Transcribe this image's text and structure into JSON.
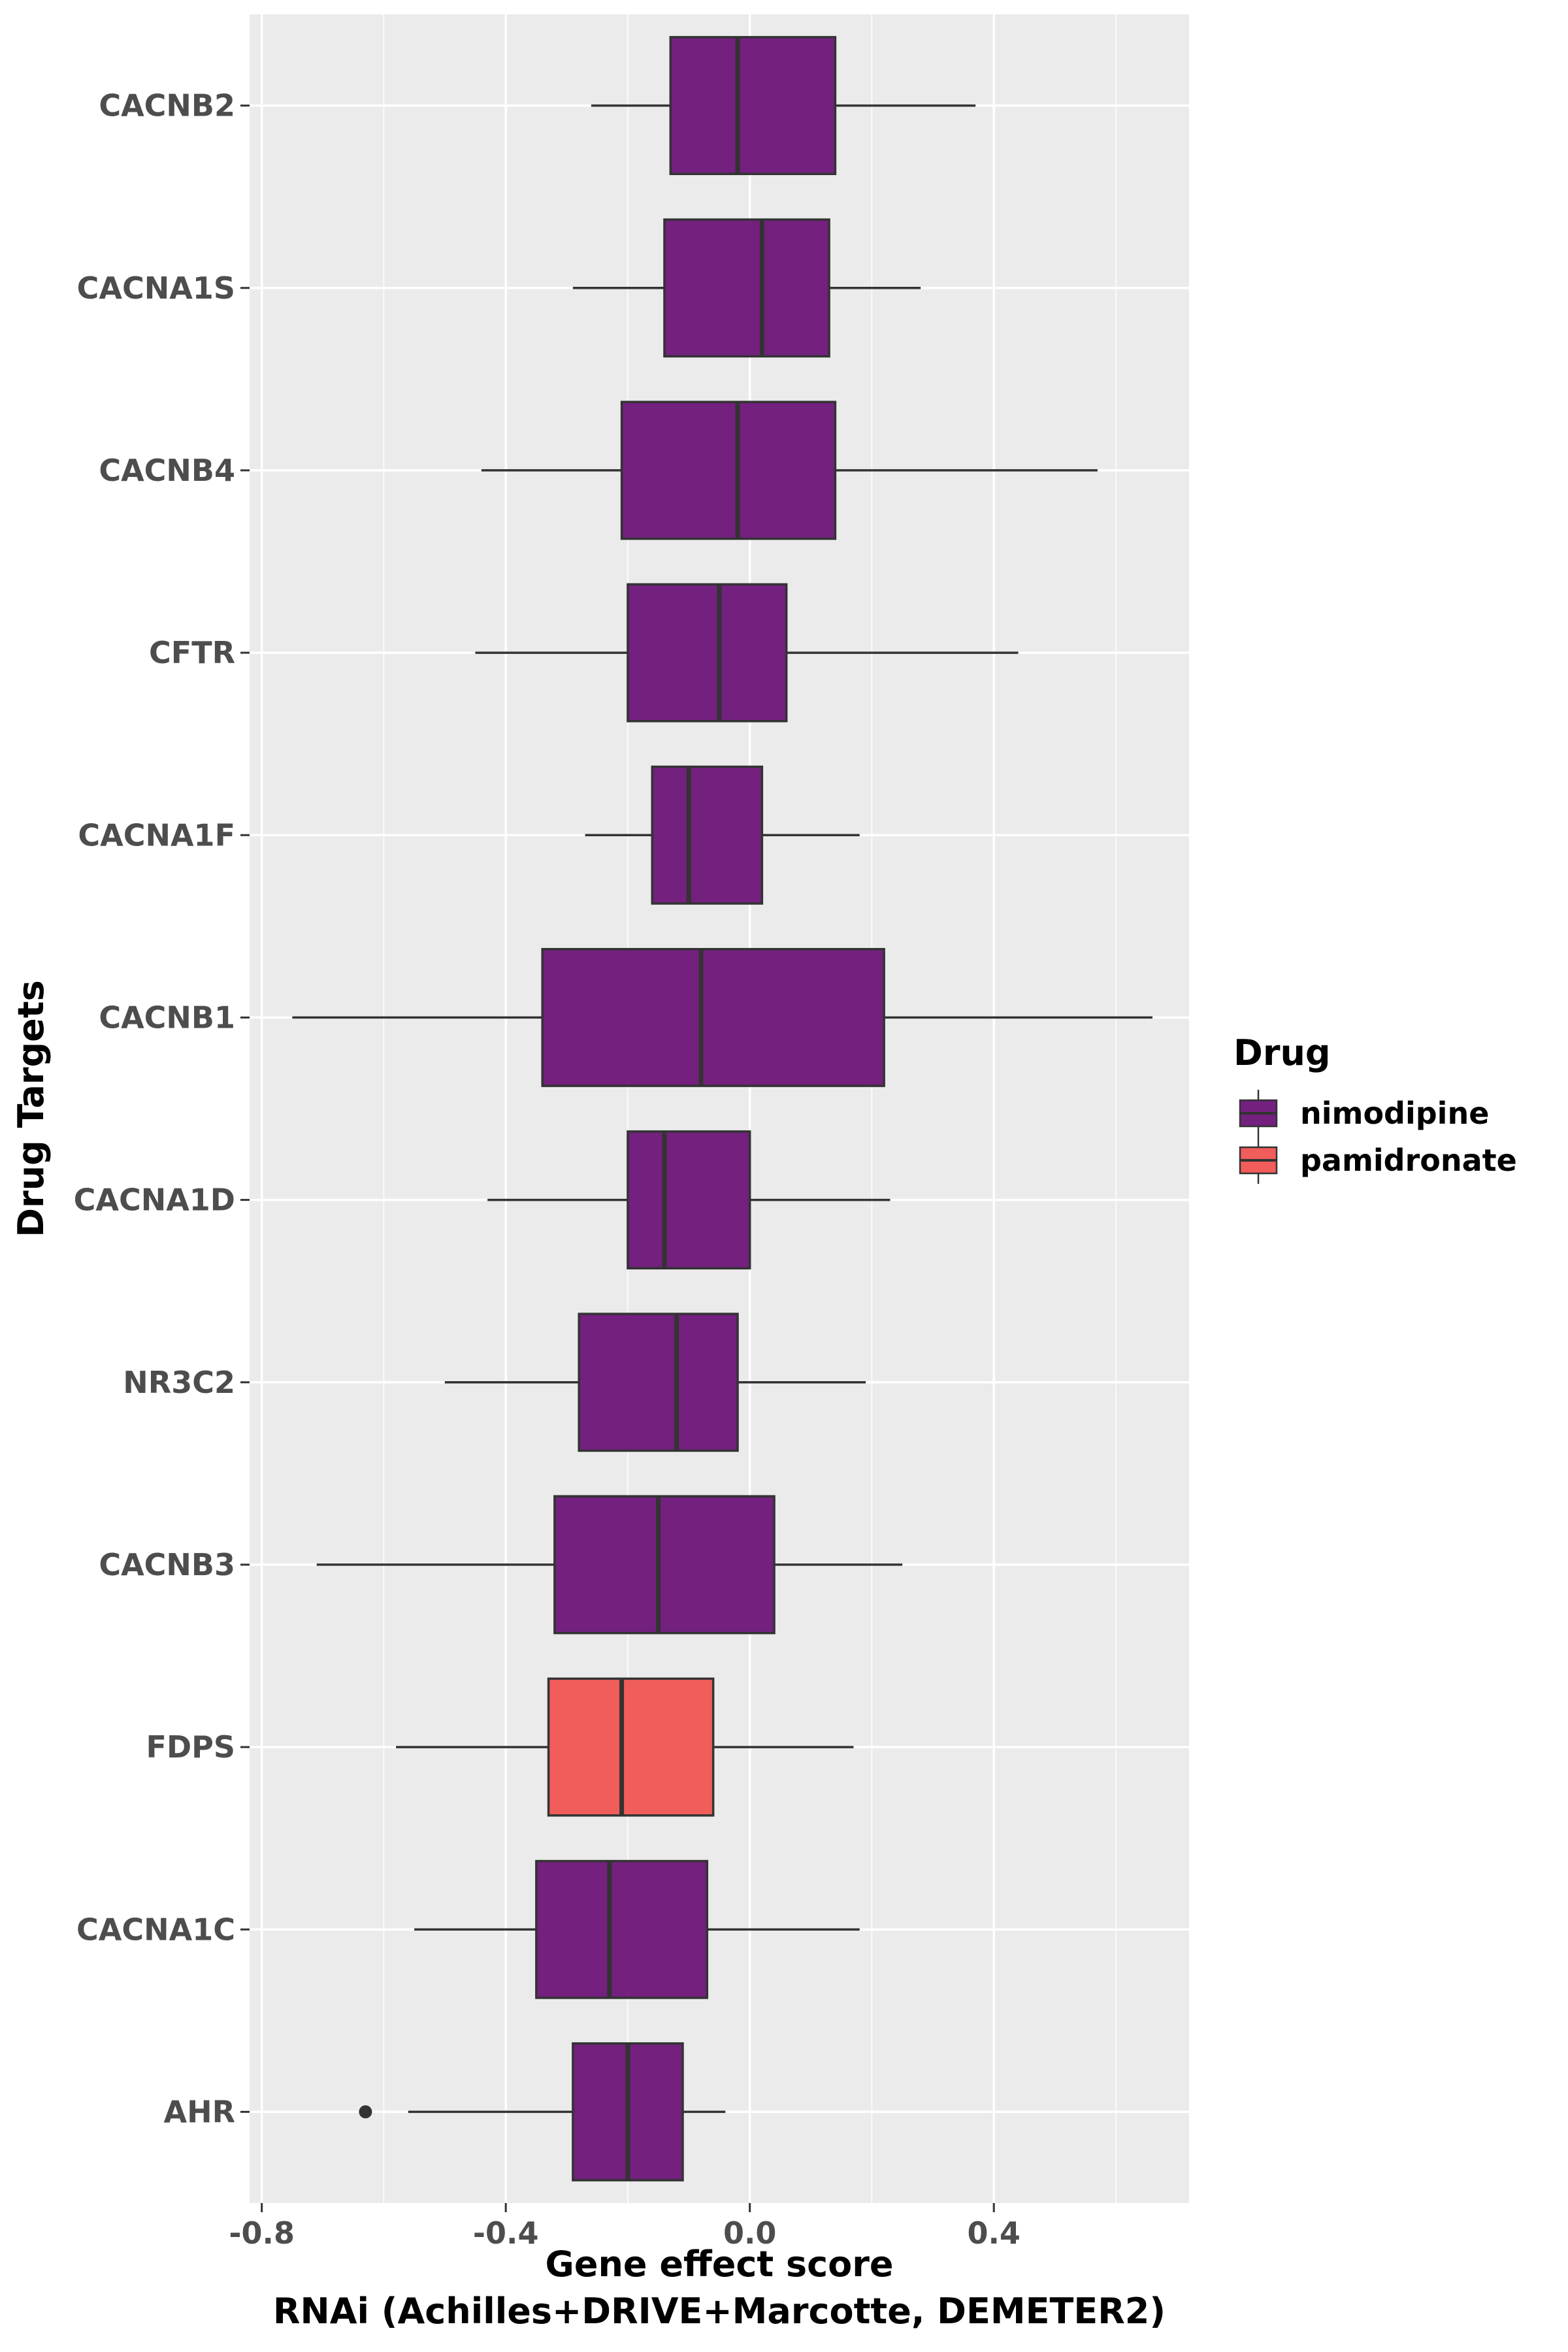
{
  "chart_data": {
    "type": "boxplot",
    "orientation": "horizontal",
    "xlabel": "Gene effect score",
    "xlabel_line2": "RNAi (Achilles+DRIVE+Marcotte, DEMETER2)",
    "ylabel": "Drug Targets",
    "xlim": [
      -0.82,
      0.72
    ],
    "xticks": [
      -0.8,
      -0.4,
      0.0,
      0.4
    ],
    "xtick_labels": [
      "-0.8",
      "-0.4",
      "0.0",
      "0.4"
    ],
    "grid": true,
    "legend": {
      "title": "Drug",
      "position": "right",
      "entries": [
        {
          "label": "nimodipine",
          "color": "#73207f"
        },
        {
          "label": "pamidronate",
          "color": "#f05d5a"
        }
      ]
    },
    "categories": [
      "CACNB2",
      "CACNA1S",
      "CACNB4",
      "CFTR",
      "CACNA1F",
      "CACNB1",
      "CACNA1D",
      "NR3C2",
      "CACNB3",
      "FDPS",
      "CACNA1C",
      "AHR"
    ],
    "boxes": [
      {
        "target": "CACNB2",
        "drug": "nimodipine",
        "whisker_low": -0.26,
        "q1": -0.13,
        "median": -0.02,
        "q3": 0.14,
        "whisker_high": 0.37,
        "outliers": []
      },
      {
        "target": "CACNA1S",
        "drug": "nimodipine",
        "whisker_low": -0.29,
        "q1": -0.14,
        "median": 0.02,
        "q3": 0.13,
        "whisker_high": 0.28,
        "outliers": []
      },
      {
        "target": "CACNB4",
        "drug": "nimodipine",
        "whisker_low": -0.44,
        "q1": -0.21,
        "median": -0.02,
        "q3": 0.14,
        "whisker_high": 0.57,
        "outliers": []
      },
      {
        "target": "CFTR",
        "drug": "nimodipine",
        "whisker_low": -0.45,
        "q1": -0.2,
        "median": -0.05,
        "q3": 0.06,
        "whisker_high": 0.44,
        "outliers": []
      },
      {
        "target": "CACNA1F",
        "drug": "nimodipine",
        "whisker_low": -0.27,
        "q1": -0.16,
        "median": -0.1,
        "q3": 0.02,
        "whisker_high": 0.18,
        "outliers": []
      },
      {
        "target": "CACNB1",
        "drug": "nimodipine",
        "whisker_low": -0.75,
        "q1": -0.34,
        "median": -0.08,
        "q3": 0.22,
        "whisker_high": 0.66,
        "outliers": []
      },
      {
        "target": "CACNA1D",
        "drug": "nimodipine",
        "whisker_low": -0.43,
        "q1": -0.2,
        "median": -0.14,
        "q3": 0.0,
        "whisker_high": 0.23,
        "outliers": []
      },
      {
        "target": "NR3C2",
        "drug": "nimodipine",
        "whisker_low": -0.5,
        "q1": -0.28,
        "median": -0.12,
        "q3": -0.02,
        "whisker_high": 0.19,
        "outliers": []
      },
      {
        "target": "CACNB3",
        "drug": "nimodipine",
        "whisker_low": -0.71,
        "q1": -0.32,
        "median": -0.15,
        "q3": 0.04,
        "whisker_high": 0.25,
        "outliers": []
      },
      {
        "target": "FDPS",
        "drug": "pamidronate",
        "whisker_low": -0.58,
        "q1": -0.33,
        "median": -0.21,
        "q3": -0.06,
        "whisker_high": 0.17,
        "outliers": []
      },
      {
        "target": "CACNA1C",
        "drug": "nimodipine",
        "whisker_low": -0.55,
        "q1": -0.35,
        "median": -0.23,
        "q3": -0.07,
        "whisker_high": 0.18,
        "outliers": []
      },
      {
        "target": "AHR",
        "drug": "nimodipine",
        "whisker_low": -0.56,
        "q1": -0.29,
        "median": -0.2,
        "q3": -0.11,
        "whisker_high": -0.04,
        "outliers": [
          -0.63
        ]
      }
    ],
    "colors": {
      "panel_background": "#ebebeb",
      "gridline": "#ffffff",
      "box_outline": "#333333"
    }
  }
}
